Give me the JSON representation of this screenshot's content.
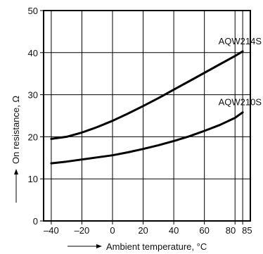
{
  "chart_data": {
    "type": "line",
    "title": "",
    "xlabel": "Ambient temperature, °C",
    "ylabel": "On resistance, Ω",
    "xlim": [
      -45,
      90
    ],
    "ylim": [
      0,
      50
    ],
    "x_ticks": [
      -40,
      -20,
      0,
      20,
      40,
      60,
      80,
      85
    ],
    "x_tick_labels": [
      "–40",
      "–20",
      "0",
      "20",
      "40",
      "60",
      "80",
      "85"
    ],
    "y_ticks": [
      0,
      10,
      20,
      30,
      40,
      50
    ],
    "grid": true,
    "series": [
      {
        "name": "AQW214S",
        "x": [
          -40,
          -30,
          -20,
          -10,
          0,
          10,
          20,
          30,
          40,
          50,
          60,
          70,
          80,
          85
        ],
        "y": [
          19.5,
          20,
          21,
          22.3,
          23.8,
          25.5,
          27.3,
          29.2,
          31.2,
          33.2,
          35.2,
          37.2,
          39.2,
          40.3
        ]
      },
      {
        "name": "AQW210S",
        "x": [
          -40,
          -30,
          -20,
          -10,
          0,
          10,
          20,
          30,
          40,
          50,
          60,
          70,
          80,
          85
        ],
        "y": [
          13.7,
          14.1,
          14.6,
          15.1,
          15.6,
          16.3,
          17.1,
          18,
          19,
          20.1,
          21.4,
          22.8,
          24.5,
          25.8
        ]
      }
    ]
  }
}
